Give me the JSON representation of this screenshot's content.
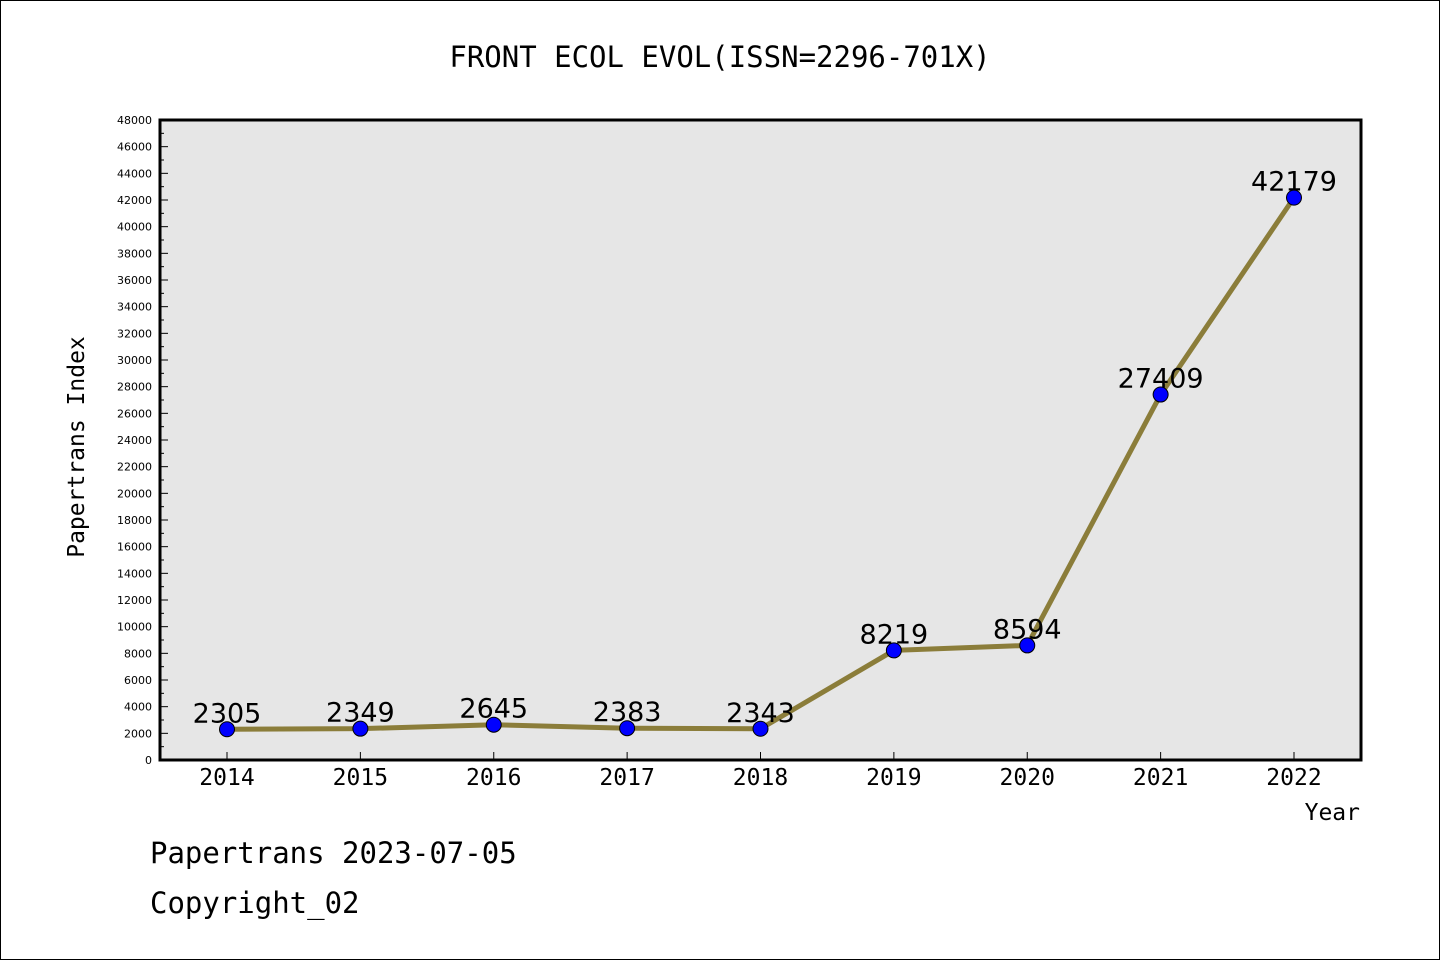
{
  "chart_data": {
    "type": "line",
    "title": "FRONT ECOL EVOL(ISSN=2296-701X)",
    "xlabel": "Year",
    "ylabel": "Papertrans Index",
    "categories": [
      "2014",
      "2015",
      "2016",
      "2017",
      "2018",
      "2019",
      "2020",
      "2021",
      "2022"
    ],
    "series": [
      {
        "values": [
          2305,
          2349,
          2645,
          2383,
          2343,
          8219,
          8594,
          27409,
          42179
        ],
        "data_labels": [
          "2305",
          "2349",
          "2645",
          "2383",
          "2343",
          "8219",
          "8594",
          "27409",
          "42179"
        ]
      }
    ],
    "ylim": [
      0,
      48000
    ],
    "ytick_step": 2000,
    "grid": false,
    "legend": "none",
    "colors": {
      "line": "#8b7d3a",
      "marker": "#0000ff",
      "plot_background": "#e6e6e6"
    }
  },
  "footer": {
    "line1": "Papertrans 2023-07-05",
    "line2": "Copyright_02"
  }
}
